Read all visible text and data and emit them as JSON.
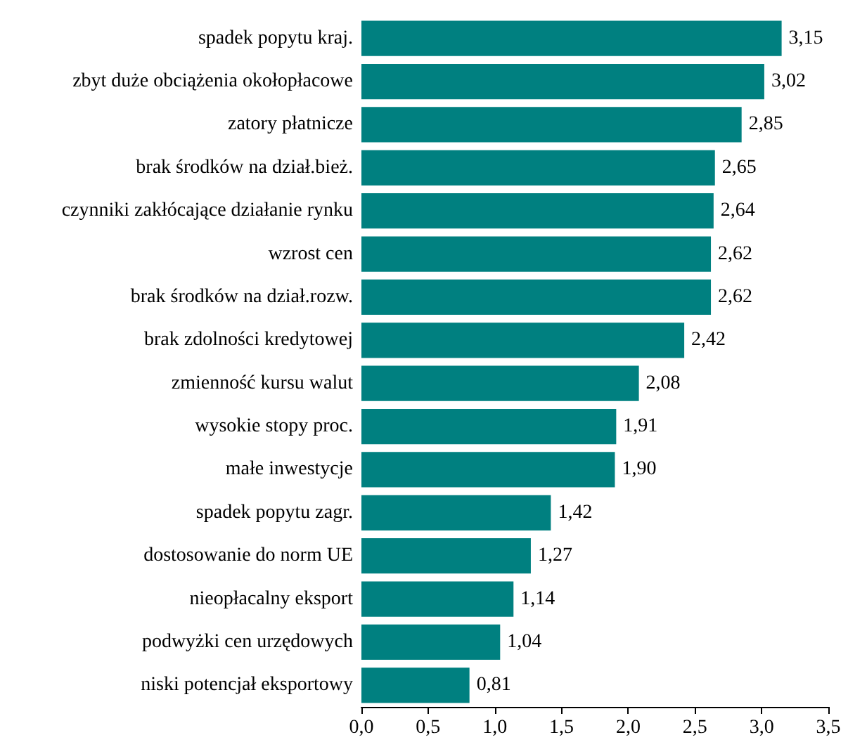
{
  "chart_data": {
    "type": "bar",
    "orientation": "horizontal",
    "categories": [
      "spadek popytu kraj.",
      "zbyt duże obciążenia okołopłacowe",
      "zatory płatnicze",
      "brak środków na dział.bież.",
      "czynniki zakłócające działanie rynku",
      "wzrost cen",
      "brak środków na dział.rozw.",
      "brak zdolności kredytowej",
      "zmienność kursu walut",
      "wysokie stopy proc.",
      "małe inwestycje",
      "spadek popytu zagr.",
      "dostosowanie do norm UE",
      "nieopłacalny eksport",
      "podwyżki cen urzędowych",
      "niski potencjał eksportowy"
    ],
    "values": [
      3.15,
      3.02,
      2.85,
      2.65,
      2.64,
      2.62,
      2.62,
      2.42,
      2.08,
      1.91,
      1.9,
      1.42,
      1.27,
      1.14,
      1.04,
      0.81
    ],
    "value_labels": [
      "3,15",
      "3,02",
      "2,85",
      "2,65",
      "2,64",
      "2,62",
      "2,62",
      "2,42",
      "2,08",
      "1,91",
      "1,90",
      "1,42",
      "1,27",
      "1,14",
      "1,04",
      "0,81"
    ],
    "color": "#008080",
    "xlim": [
      0,
      3.5
    ],
    "xticks": [
      {
        "value": 0,
        "label": "0,0"
      },
      {
        "value": 0.5,
        "label": "0,5"
      },
      {
        "value": 1,
        "label": "1,0"
      },
      {
        "value": 1.5,
        "label": "1,5"
      },
      {
        "value": 2,
        "label": "2,0"
      },
      {
        "value": 2.5,
        "label": "2,5"
      },
      {
        "value": 3,
        "label": "3,0"
      },
      {
        "value": 3.5,
        "label": "3,5"
      }
    ],
    "grid": false
  }
}
